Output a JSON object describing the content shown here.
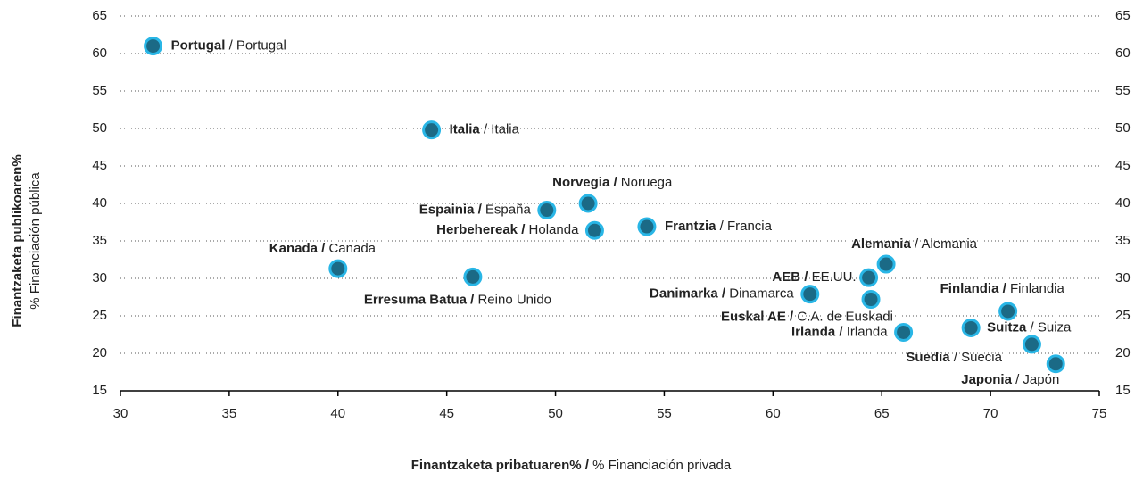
{
  "chart_data": {
    "type": "scatter",
    "x_label": {
      "bold": "Finantzaketa pribatuaren% /",
      "regular": " % Financiación privada"
    },
    "y_label": {
      "bold": "Finantzaketa publikoaren%",
      "regular": "% Financiación pública"
    },
    "xlim": [
      30,
      75
    ],
    "xticks": [
      30,
      35,
      40,
      45,
      50,
      55,
      60,
      65,
      70,
      75
    ],
    "ylim": [
      15,
      65
    ],
    "yticks": [
      15,
      20,
      25,
      30,
      35,
      40,
      45,
      50,
      55,
      60,
      65
    ],
    "y2lim": [
      15,
      65
    ],
    "y2ticks": [
      15,
      20,
      25,
      30,
      35,
      40,
      45,
      50,
      55,
      60,
      65
    ],
    "grid": true,
    "marker_color": "#1b6a86",
    "marker_edge_color": "#29b6e6",
    "points": [
      {
        "name_bold": "Portugal",
        "name": " / Portugal",
        "x": 31.5,
        "y": 61
      },
      {
        "name_bold": "Italia",
        "name": " / Italia",
        "x": 44.3,
        "y": 49.8
      },
      {
        "name_bold": "Norvegia /",
        "name": " Noruega",
        "x": 51.5,
        "y": 40
      },
      {
        "name_bold": "Espainia /",
        "name": " España",
        "x": 49.6,
        "y": 39.1
      },
      {
        "name_bold": "Herbehereak /",
        "name": " Holanda",
        "x": 51.8,
        "y": 36.4
      },
      {
        "name_bold": "Frantzia",
        "name": " / Francia",
        "x": 54.2,
        "y": 36.9
      },
      {
        "name_bold": "Kanada /",
        "name": " Canada",
        "x": 40,
        "y": 31.3
      },
      {
        "name_bold": "Erresuma Batua /",
        "name": " Reino Unido",
        "x": 46.2,
        "y": 30.2
      },
      {
        "name_bold": "Alemania",
        "name": " / Alemania",
        "x": 65.2,
        "y": 31.9
      },
      {
        "name_bold": "AEB /",
        "name": " EE.UU.",
        "x": 64.4,
        "y": 30.1
      },
      {
        "name_bold": "Danimarka /",
        "name": " Dinamarca",
        "x": 61.7,
        "y": 27.9
      },
      {
        "name_bold": "Euskal AE /",
        "name": " C.A. de Euskadi",
        "x": 64.5,
        "y": 27.2
      },
      {
        "name_bold": "Finlandia /",
        "name": " Finlandia",
        "x": 70.8,
        "y": 25.6
      },
      {
        "name_bold": "Suitza",
        "name": " / Suiza",
        "x": 69.1,
        "y": 23.4
      },
      {
        "name_bold": "Irlanda /",
        "name": " Irlanda",
        "x": 66,
        "y": 22.8
      },
      {
        "name_bold": "Suedia",
        "name": " / Suecia",
        "x": 71.9,
        "y": 21.2
      },
      {
        "name_bold": "Japonia",
        "name": " / Japón",
        "x": 73,
        "y": 18.6
      }
    ]
  }
}
